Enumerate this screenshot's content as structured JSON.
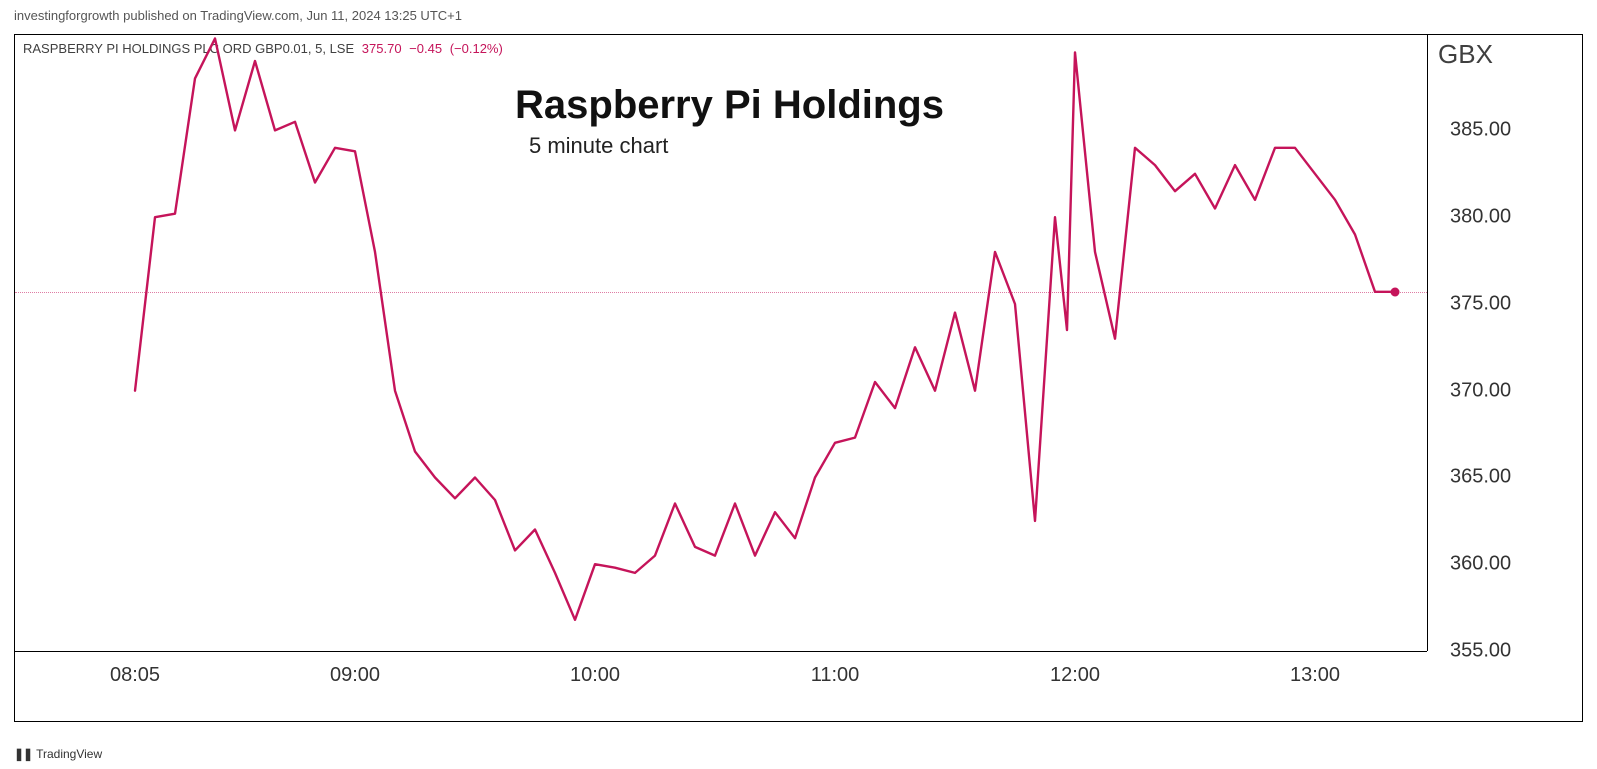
{
  "publish": {
    "author": "investingforgrowth",
    "middle": "published on TradingView.com,",
    "date": "Jun 11, 2024 13:25 UTC+1"
  },
  "legend": {
    "symbol": "RASPBERRY PI HOLDINGS PLC ORD GBP0.01, 5, LSE",
    "price": "375.70",
    "change": "−0.45",
    "change_pct": "(−0.12%)"
  },
  "title": {
    "big": "Raspberry Pi Holdings",
    "sub": "5 minute chart"
  },
  "footer": {
    "mark": "❚❚",
    "text": "TradingView"
  },
  "chart": {
    "type": "line",
    "line_color": "#c5145a",
    "line_width": 2.4,
    "background_color": "#ffffff",
    "last_price_line_color": "#c5145a",
    "last_price": 375.7,
    "yaxis": {
      "title": "GBX",
      "title_fontsize": 26,
      "min": 355.0,
      "max": 390.5,
      "ticks": [
        355.0,
        360.0,
        365.0,
        370.0,
        375.0,
        380.0,
        385.0
      ],
      "tick_fontsize": 20,
      "tick_format": "fixed2"
    },
    "xaxis": {
      "min": 455,
      "max": 808,
      "ticks": [
        {
          "m": 485,
          "label": "08:05"
        },
        {
          "m": 540,
          "label": "09:00"
        },
        {
          "m": 600,
          "label": "10:00"
        },
        {
          "m": 660,
          "label": "11:00"
        },
        {
          "m": 720,
          "label": "12:00"
        },
        {
          "m": 780,
          "label": "13:00"
        }
      ],
      "tick_fontsize": 20
    },
    "series": [
      {
        "m": 485,
        "v": 370.0
      },
      {
        "m": 490,
        "v": 380.0
      },
      {
        "m": 495,
        "v": 380.2
      },
      {
        "m": 500,
        "v": 388.0
      },
      {
        "m": 505,
        "v": 390.3
      },
      {
        "m": 510,
        "v": 385.0
      },
      {
        "m": 515,
        "v": 389.0
      },
      {
        "m": 520,
        "v": 385.0
      },
      {
        "m": 525,
        "v": 385.5
      },
      {
        "m": 530,
        "v": 382.0
      },
      {
        "m": 535,
        "v": 384.0
      },
      {
        "m": 540,
        "v": 383.8
      },
      {
        "m": 545,
        "v": 378.0
      },
      {
        "m": 550,
        "v": 370.0
      },
      {
        "m": 555,
        "v": 366.5
      },
      {
        "m": 560,
        "v": 365.0
      },
      {
        "m": 565,
        "v": 363.8
      },
      {
        "m": 570,
        "v": 365.0
      },
      {
        "m": 575,
        "v": 363.7
      },
      {
        "m": 580,
        "v": 360.8
      },
      {
        "m": 585,
        "v": 362.0
      },
      {
        "m": 590,
        "v": 359.5
      },
      {
        "m": 595,
        "v": 356.8
      },
      {
        "m": 600,
        "v": 360.0
      },
      {
        "m": 605,
        "v": 359.8
      },
      {
        "m": 610,
        "v": 359.5
      },
      {
        "m": 615,
        "v": 360.5
      },
      {
        "m": 620,
        "v": 363.5
      },
      {
        "m": 625,
        "v": 361.0
      },
      {
        "m": 630,
        "v": 360.5
      },
      {
        "m": 635,
        "v": 363.5
      },
      {
        "m": 640,
        "v": 360.5
      },
      {
        "m": 645,
        "v": 363.0
      },
      {
        "m": 650,
        "v": 361.5
      },
      {
        "m": 655,
        "v": 365.0
      },
      {
        "m": 660,
        "v": 367.0
      },
      {
        "m": 665,
        "v": 367.3
      },
      {
        "m": 670,
        "v": 370.5
      },
      {
        "m": 675,
        "v": 369.0
      },
      {
        "m": 680,
        "v": 372.5
      },
      {
        "m": 685,
        "v": 370.0
      },
      {
        "m": 690,
        "v": 374.5
      },
      {
        "m": 695,
        "v": 370.0
      },
      {
        "m": 700,
        "v": 378.0
      },
      {
        "m": 705,
        "v": 375.0
      },
      {
        "m": 710,
        "v": 362.5
      },
      {
        "m": 715,
        "v": 380.0
      },
      {
        "m": 718,
        "v": 373.5
      },
      {
        "m": 720,
        "v": 389.5
      },
      {
        "m": 725,
        "v": 378.0
      },
      {
        "m": 730,
        "v": 373.0
      },
      {
        "m": 735,
        "v": 384.0
      },
      {
        "m": 740,
        "v": 383.0
      },
      {
        "m": 745,
        "v": 381.5
      },
      {
        "m": 750,
        "v": 382.5
      },
      {
        "m": 755,
        "v": 380.5
      },
      {
        "m": 760,
        "v": 383.0
      },
      {
        "m": 765,
        "v": 381.0
      },
      {
        "m": 770,
        "v": 384.0
      },
      {
        "m": 775,
        "v": 384.0
      },
      {
        "m": 780,
        "v": 382.5
      },
      {
        "m": 785,
        "v": 381.0
      },
      {
        "m": 790,
        "v": 379.0
      },
      {
        "m": 795,
        "v": 375.7
      },
      {
        "m": 800,
        "v": 375.7
      }
    ]
  }
}
